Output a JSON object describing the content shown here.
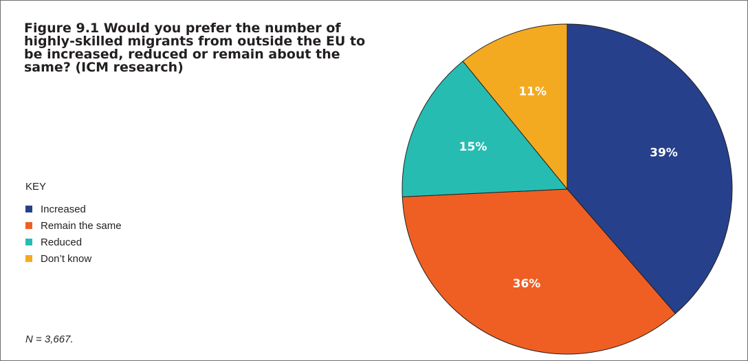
{
  "title": "Figure 9.1 Would you prefer the number of highly-skilled migrants from outside the EU to be increased, reduced or remain about the same? (ICM research)",
  "key_heading": "KEY",
  "note": "N = 3,667.",
  "colors": {
    "increased": "#27408b",
    "remain": "#ef5f24",
    "reduced": "#27bcb1",
    "dont_know": "#f4aa20",
    "slice_border": "#231f20"
  },
  "legend": [
    {
      "label": "Increased",
      "color": "#27408b"
    },
    {
      "label": "Remain the same",
      "color": "#ef5f24"
    },
    {
      "label": "Reduced",
      "color": "#27bcb1"
    },
    {
      "label": "Don’t know",
      "color": "#f4aa20"
    }
  ],
  "chart_data": {
    "type": "pie",
    "title": "Figure 9.1 Would you prefer the number of highly-skilled migrants from outside the EU to be increased, reduced or remain about the same? (ICM research)",
    "start": "12 o'clock",
    "direction": "clockwise",
    "legend_position": "left",
    "slices": [
      {
        "label": "Increased",
        "value": 39,
        "display": "39%",
        "color": "#27408b"
      },
      {
        "label": "Remain the same",
        "value": 36,
        "display": "36%",
        "color": "#ef5f24"
      },
      {
        "label": "Reduced",
        "value": 15,
        "display": "15%",
        "color": "#27bcb1"
      },
      {
        "label": "Don’t know",
        "value": 11,
        "display": "11%",
        "color": "#f4aa20"
      }
    ]
  }
}
